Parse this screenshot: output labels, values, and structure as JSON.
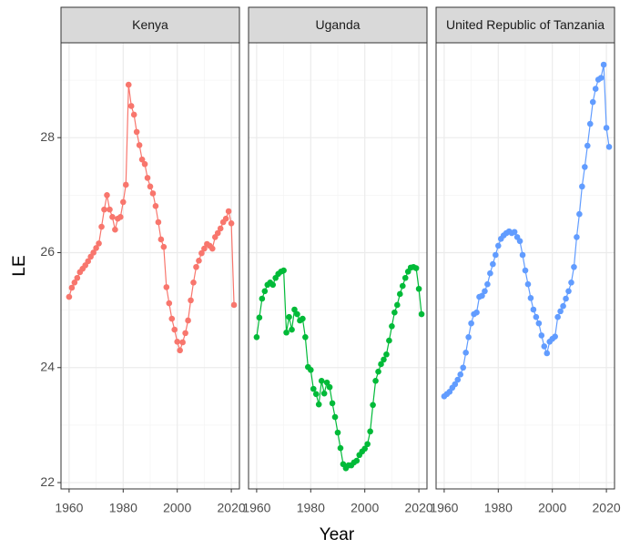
{
  "chart_data": {
    "type": "line",
    "xlabel": "Year",
    "ylabel": "LE",
    "xlim": [
      1957,
      2023
    ],
    "xticks": [
      1960,
      1980,
      2000,
      2020
    ],
    "xminor": [
      1970,
      1990,
      2010
    ],
    "ylim": [
      21.89,
      29.65
    ],
    "yticks": [
      22,
      24,
      26,
      28
    ],
    "yminor": [
      23,
      25,
      27,
      29
    ],
    "grid": true,
    "x": [
      1960,
      1961,
      1962,
      1963,
      1964,
      1965,
      1966,
      1967,
      1968,
      1969,
      1970,
      1971,
      1972,
      1973,
      1974,
      1975,
      1976,
      1977,
      1978,
      1979,
      1980,
      1981,
      1982,
      1983,
      1984,
      1985,
      1986,
      1987,
      1988,
      1989,
      1990,
      1991,
      1992,
      1993,
      1994,
      1995,
      1996,
      1997,
      1998,
      1999,
      2000,
      2001,
      2002,
      2003,
      2004,
      2005,
      2006,
      2007,
      2008,
      2009,
      2010,
      2011,
      2012,
      2013,
      2014,
      2015,
      2016,
      2017,
      2018,
      2019,
      2020,
      2021
    ],
    "series": [
      {
        "name": "Kenya",
        "color": "#F8766D",
        "values": [
          25.23,
          25.39,
          25.48,
          25.56,
          25.66,
          25.72,
          25.78,
          25.85,
          25.93,
          26.0,
          26.08,
          26.16,
          26.45,
          26.75,
          27.0,
          26.75,
          26.62,
          26.4,
          26.59,
          26.62,
          26.88,
          27.18,
          28.92,
          28.55,
          28.4,
          28.1,
          27.87,
          27.62,
          27.54,
          27.3,
          27.15,
          27.03,
          26.81,
          26.53,
          26.23,
          26.1,
          25.4,
          25.12,
          24.85,
          24.66,
          24.45,
          24.3,
          24.44,
          24.6,
          24.82,
          25.17,
          25.48,
          25.75,
          25.86,
          25.99,
          26.07,
          26.15,
          26.12,
          26.07,
          26.27,
          26.34,
          26.42,
          26.53,
          26.59,
          26.72,
          26.51,
          25.09
        ]
      },
      {
        "name": "Uganda",
        "color": "#00BA38",
        "values": [
          24.53,
          24.87,
          25.2,
          25.33,
          25.44,
          25.48,
          25.44,
          25.56,
          25.63,
          25.67,
          25.69,
          24.61,
          24.88,
          24.66,
          25.01,
          24.93,
          24.82,
          24.85,
          24.53,
          24.01,
          23.96,
          23.63,
          23.54,
          23.36,
          23.77,
          23.55,
          23.74,
          23.66,
          23.38,
          23.14,
          22.87,
          22.6,
          22.32,
          22.25,
          22.3,
          22.3,
          22.35,
          22.38,
          22.48,
          22.54,
          22.59,
          22.67,
          22.89,
          23.35,
          23.77,
          23.93,
          24.06,
          24.14,
          24.23,
          24.47,
          24.72,
          24.96,
          25.09,
          25.28,
          25.42,
          25.56,
          25.67,
          25.74,
          25.75,
          25.73,
          25.37,
          24.93
        ]
      },
      {
        "name": "United Republic of Tanzania",
        "color": "#619CFF",
        "values": [
          23.5,
          23.54,
          23.58,
          23.65,
          23.71,
          23.79,
          23.88,
          24.0,
          24.26,
          24.53,
          24.77,
          24.93,
          24.96,
          25.23,
          25.25,
          25.33,
          25.45,
          25.64,
          25.8,
          25.96,
          26.12,
          26.24,
          26.3,
          26.34,
          26.37,
          26.34,
          26.36,
          26.27,
          26.2,
          25.96,
          25.69,
          25.45,
          25.21,
          25.01,
          24.88,
          24.77,
          24.56,
          24.37,
          24.25,
          24.45,
          24.5,
          24.54,
          24.88,
          24.98,
          25.07,
          25.2,
          25.33,
          25.48,
          25.75,
          26.27,
          26.67,
          27.15,
          27.49,
          27.86,
          28.24,
          28.62,
          28.85,
          29.01,
          29.04,
          29.27,
          28.17,
          27.84
        ]
      }
    ]
  }
}
